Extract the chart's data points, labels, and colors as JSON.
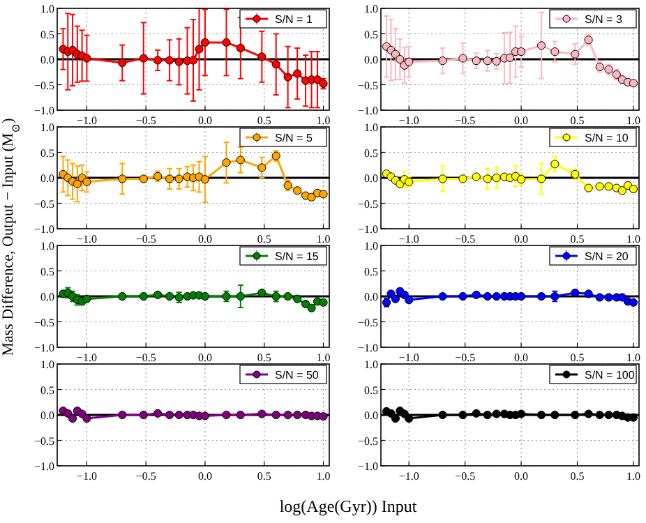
{
  "chart_data": [
    {
      "type": "line",
      "ylabel": "Mass Difference, Output − Input (M$_{⊙}$)",
      "xlabel": "log(Age(Gyr)) Input",
      "x": [
        -1.2,
        -1.16,
        -1.12,
        -1.08,
        -1.04,
        -1.0,
        -0.7,
        -0.52,
        -0.4,
        -0.3,
        -0.22,
        -0.15,
        -0.1,
        -0.05,
        0.0,
        0.18,
        0.3,
        0.48,
        0.6,
        0.7,
        0.78,
        0.85,
        0.9,
        0.95,
        1.0
      ],
      "xlim": [
        -1.25,
        1.05
      ],
      "ylim": [
        -1,
        1
      ],
      "xticks": [
        {
          "value": -1,
          "label": "−1.0"
        },
        {
          "value": -0.5,
          "label": "−0.5"
        },
        {
          "value": 0,
          "label": "0.0"
        },
        {
          "value": 0.5,
          "label": "0.5"
        },
        {
          "value": 1,
          "label": "1.0"
        }
      ],
      "yticks": [
        {
          "value": -1,
          "label": "−1.0"
        },
        {
          "value": -0.5,
          "label": "−0.5"
        },
        {
          "value": 0,
          "label": "0.0"
        },
        {
          "value": 0.5,
          "label": "0.5"
        },
        {
          "value": 1,
          "label": "1.0"
        }
      ],
      "grid": true,
      "legend": "top right",
      "marker": "circle",
      "ref_lines": [
        {
          "axis": "y",
          "value": 0,
          "color": "#000000"
        }
      ],
      "series": [
        {
          "name": "S/N = 1",
          "color": "#ff0000",
          "values": [
            0.2,
            0.15,
            0.18,
            0.1,
            0.07,
            0.02,
            -0.07,
            0.02,
            -0.02,
            -0.02,
            -0.05,
            -0.03,
            -0.02,
            0.2,
            0.33,
            0.33,
            0.22,
            0.05,
            -0.1,
            -0.35,
            -0.28,
            -0.42,
            -0.4,
            -0.4,
            -0.48
          ],
          "errors": [
            0.4,
            0.75,
            0.7,
            0.55,
            0.5,
            0.45,
            0.35,
            0.7,
            0.2,
            0.4,
            0.45,
            0.65,
            0.8,
            0.8,
            0.65,
            0.65,
            0.6,
            0.5,
            0.6,
            0.6,
            0.5,
            0.5,
            0.55,
            0.55,
            0.1
          ]
        }
      ]
    },
    {
      "type": "line",
      "x": [
        -1.2,
        -1.16,
        -1.12,
        -1.08,
        -1.04,
        -1.0,
        -0.7,
        -0.52,
        -0.4,
        -0.3,
        -0.22,
        -0.15,
        -0.1,
        -0.05,
        0.0,
        0.18,
        0.3,
        0.48,
        0.6,
        0.7,
        0.78,
        0.85,
        0.9,
        0.95,
        1.0
      ],
      "xlim": [
        -1.25,
        1.05
      ],
      "ylim": [
        -1,
        1
      ],
      "xticks": [
        {
          "value": -1,
          "label": "−1.0"
        },
        {
          "value": -0.5,
          "label": "−0.5"
        },
        {
          "value": 0,
          "label": "0.0"
        },
        {
          "value": 0.5,
          "label": "0.5"
        },
        {
          "value": 1,
          "label": "1.0"
        }
      ],
      "yticks": [
        {
          "value": -1,
          "label": "−1.0"
        },
        {
          "value": -0.5,
          "label": "−0.5"
        },
        {
          "value": 0,
          "label": "0.0"
        },
        {
          "value": 0.5,
          "label": "0.5"
        },
        {
          "value": 1,
          "label": "1.0"
        }
      ],
      "grid": true,
      "legend": "top right",
      "marker": "circle",
      "ref_lines": [
        {
          "axis": "y",
          "value": 0,
          "color": "#000000"
        }
      ],
      "series": [
        {
          "name": "S/N = 3",
          "color": "#ffb6c1",
          "values": [
            0.25,
            0.18,
            0.1,
            0.0,
            -0.12,
            -0.05,
            -0.03,
            0.02,
            -0.03,
            -0.03,
            -0.04,
            0.02,
            0.03,
            0.15,
            0.15,
            0.27,
            0.15,
            0.1,
            0.38,
            -0.15,
            -0.2,
            -0.3,
            -0.4,
            -0.45,
            -0.47
          ],
          "errors": [
            0.6,
            0.6,
            0.5,
            0.4,
            0.35,
            0.3,
            0.25,
            0.3,
            0.15,
            0.2,
            0.15,
            0.5,
            0.5,
            0.5,
            0.3,
            0.65,
            0.2,
            0.2,
            0.1,
            0.1,
            0.1,
            0.1,
            0.05,
            0.05,
            0.05
          ]
        }
      ]
    },
    {
      "type": "line",
      "x": [
        -1.2,
        -1.16,
        -1.12,
        -1.08,
        -1.04,
        -1.0,
        -0.7,
        -0.52,
        -0.4,
        -0.3,
        -0.22,
        -0.15,
        -0.1,
        -0.05,
        0.0,
        0.18,
        0.3,
        0.48,
        0.6,
        0.7,
        0.78,
        0.85,
        0.9,
        0.95,
        1.0
      ],
      "xlim": [
        -1.25,
        1.05
      ],
      "ylim": [
        -1,
        1
      ],
      "xticks": [
        {
          "value": -1,
          "label": "−1.0"
        },
        {
          "value": -0.5,
          "label": "−0.5"
        },
        {
          "value": 0,
          "label": "0.0"
        },
        {
          "value": 0.5,
          "label": "0.5"
        },
        {
          "value": 1,
          "label": "1.0"
        }
      ],
      "yticks": [
        {
          "value": -1,
          "label": "−1.0"
        },
        {
          "value": -0.5,
          "label": "−0.5"
        },
        {
          "value": 0,
          "label": "0.0"
        },
        {
          "value": 0.5,
          "label": "0.5"
        },
        {
          "value": 1,
          "label": "1.0"
        }
      ],
      "grid": true,
      "legend": "top right",
      "marker": "circle",
      "ref_lines": [
        {
          "axis": "y",
          "value": 0,
          "color": "#000000"
        }
      ],
      "series": [
        {
          "name": "S/N = 5",
          "color": "#ffa500",
          "values": [
            0.07,
            0.0,
            -0.07,
            -0.12,
            0.0,
            -0.08,
            -0.02,
            -0.02,
            0.03,
            -0.02,
            -0.02,
            0.02,
            0.0,
            0.02,
            -0.03,
            0.3,
            0.35,
            0.2,
            0.43,
            -0.15,
            -0.25,
            -0.35,
            -0.38,
            -0.3,
            -0.32
          ],
          "errors": [
            0.35,
            0.35,
            0.35,
            0.35,
            0.25,
            0.2,
            0.3,
            0.05,
            0.1,
            0.2,
            0.2,
            0.2,
            0.25,
            0.3,
            0.45,
            0.4,
            0.25,
            0.2,
            0.1,
            0.1,
            0.05,
            0.05,
            0.05,
            0.05,
            0.05
          ]
        }
      ]
    },
    {
      "type": "line",
      "x": [
        -1.2,
        -1.16,
        -1.12,
        -1.08,
        -1.04,
        -1.0,
        -0.7,
        -0.52,
        -0.4,
        -0.3,
        -0.22,
        -0.15,
        -0.1,
        -0.05,
        0.0,
        0.18,
        0.3,
        0.48,
        0.6,
        0.7,
        0.78,
        0.85,
        0.9,
        0.95,
        1.0
      ],
      "xlim": [
        -1.25,
        1.05
      ],
      "ylim": [
        -1,
        1
      ],
      "xticks": [
        {
          "value": -1,
          "label": "−1.0"
        },
        {
          "value": -0.5,
          "label": "−0.5"
        },
        {
          "value": 0,
          "label": "0.0"
        },
        {
          "value": 0.5,
          "label": "0.5"
        },
        {
          "value": 1,
          "label": "1.0"
        }
      ],
      "yticks": [
        {
          "value": -1,
          "label": "−1.0"
        },
        {
          "value": -0.5,
          "label": "−0.5"
        },
        {
          "value": 0,
          "label": "0.0"
        },
        {
          "value": 0.5,
          "label": "0.5"
        },
        {
          "value": 1,
          "label": "1.0"
        }
      ],
      "grid": true,
      "legend": "top right",
      "marker": "circle",
      "ref_lines": [
        {
          "axis": "y",
          "value": 0,
          "color": "#000000"
        }
      ],
      "series": [
        {
          "name": "S/N = 10",
          "color": "#ffff00",
          "values": [
            0.08,
            0.02,
            -0.05,
            -0.12,
            -0.03,
            -0.08,
            -0.02,
            -0.02,
            0.02,
            -0.02,
            0.0,
            0.02,
            0.0,
            0.03,
            -0.03,
            -0.02,
            0.27,
            0.07,
            -0.2,
            -0.17,
            -0.17,
            -0.2,
            -0.25,
            -0.15,
            -0.22
          ],
          "errors": [
            0.05,
            0.05,
            0.05,
            0.05,
            0.15,
            0.1,
            0.25,
            0.05,
            0.05,
            0.2,
            0.2,
            0.05,
            0.05,
            0.2,
            0.1,
            0.3,
            0.15,
            0.1,
            0.05,
            0.05,
            0.05,
            0.05,
            0.05,
            0.05,
            0.05
          ]
        }
      ]
    },
    {
      "type": "line",
      "x": [
        -1.2,
        -1.16,
        -1.12,
        -1.08,
        -1.04,
        -1.0,
        -0.7,
        -0.52,
        -0.4,
        -0.3,
        -0.22,
        -0.15,
        -0.1,
        -0.05,
        0.0,
        0.18,
        0.3,
        0.48,
        0.6,
        0.7,
        0.78,
        0.85,
        0.9,
        0.95,
        1.0
      ],
      "xlim": [
        -1.25,
        1.05
      ],
      "ylim": [
        -1,
        1
      ],
      "xticks": [
        {
          "value": -1,
          "label": "−1.0"
        },
        {
          "value": -0.5,
          "label": "−0.5"
        },
        {
          "value": 0,
          "label": "0.0"
        },
        {
          "value": 0.5,
          "label": "0.5"
        },
        {
          "value": 1,
          "label": "1.0"
        }
      ],
      "yticks": [
        {
          "value": -1,
          "label": "−1.0"
        },
        {
          "value": -0.5,
          "label": "−0.5"
        },
        {
          "value": 0,
          "label": "0.0"
        },
        {
          "value": 0.5,
          "label": "0.5"
        },
        {
          "value": 1,
          "label": "1.0"
        }
      ],
      "grid": true,
      "legend": "top right",
      "marker": "circle",
      "ref_lines": [
        {
          "axis": "y",
          "value": 0,
          "color": "#000000"
        }
      ],
      "series": [
        {
          "name": "S/N = 15",
          "color": "#008000",
          "values": [
            0.05,
            0.07,
            0.0,
            -0.07,
            -0.1,
            -0.05,
            0.0,
            0.0,
            0.03,
            0.0,
            -0.02,
            0.0,
            0.02,
            0.02,
            0.0,
            0.0,
            0.0,
            0.07,
            0.0,
            0.0,
            -0.05,
            -0.15,
            -0.23,
            -0.1,
            -0.12
          ],
          "errors": [
            0.05,
            0.1,
            0.1,
            0.1,
            0.05,
            0.05,
            0.05,
            0.02,
            0.02,
            0.02,
            0.1,
            0.02,
            0.02,
            0.02,
            0.02,
            0.1,
            0.22,
            0.02,
            0.1,
            0.02,
            0.02,
            0.02,
            0.02,
            0.02,
            0.02
          ]
        }
      ]
    },
    {
      "type": "line",
      "x": [
        -1.2,
        -1.16,
        -1.12,
        -1.08,
        -1.04,
        -1.0,
        -0.7,
        -0.52,
        -0.4,
        -0.3,
        -0.22,
        -0.15,
        -0.1,
        -0.05,
        0.0,
        0.18,
        0.3,
        0.48,
        0.6,
        0.7,
        0.78,
        0.85,
        0.9,
        0.95,
        1.0
      ],
      "xlim": [
        -1.25,
        1.05
      ],
      "ylim": [
        -1,
        1
      ],
      "xticks": [
        {
          "value": -1,
          "label": "−1.0"
        },
        {
          "value": -0.5,
          "label": "−0.5"
        },
        {
          "value": 0,
          "label": "0.0"
        },
        {
          "value": 0.5,
          "label": "0.5"
        },
        {
          "value": 1,
          "label": "1.0"
        }
      ],
      "yticks": [
        {
          "value": -1,
          "label": "−1.0"
        },
        {
          "value": -0.5,
          "label": "−0.5"
        },
        {
          "value": 0,
          "label": "0.0"
        },
        {
          "value": 0.5,
          "label": "0.5"
        },
        {
          "value": 1,
          "label": "1.0"
        }
      ],
      "grid": true,
      "legend": "top right",
      "marker": "circle",
      "ref_lines": [
        {
          "axis": "y",
          "value": 0,
          "color": "#000000"
        }
      ],
      "series": [
        {
          "name": "S/N = 20",
          "color": "#0000ff",
          "values": [
            -0.12,
            0.05,
            -0.05,
            0.1,
            0.03,
            -0.07,
            0.0,
            0.0,
            0.03,
            0.0,
            0.0,
            0.0,
            0.0,
            0.0,
            0.0,
            0.0,
            0.0,
            0.07,
            0.05,
            -0.02,
            -0.02,
            -0.02,
            -0.02,
            -0.1,
            -0.12
          ],
          "errors": [
            0.08,
            0.05,
            0.05,
            0.05,
            0.05,
            0.05,
            0.02,
            0.02,
            0.02,
            0.02,
            0.02,
            0.02,
            0.02,
            0.02,
            0.02,
            0.02,
            0.1,
            0.02,
            0.02,
            0.02,
            0.02,
            0.02,
            0.02,
            0.02,
            0.02
          ]
        }
      ]
    },
    {
      "type": "line",
      "x": [
        -1.2,
        -1.16,
        -1.12,
        -1.08,
        -1.04,
        -1.0,
        -0.7,
        -0.52,
        -0.4,
        -0.3,
        -0.22,
        -0.15,
        -0.1,
        -0.05,
        0.0,
        0.18,
        0.3,
        0.48,
        0.6,
        0.7,
        0.78,
        0.85,
        0.9,
        0.95,
        1.0
      ],
      "xlim": [
        -1.25,
        1.05
      ],
      "ylim": [
        -1,
        1
      ],
      "xticks": [
        {
          "value": -1,
          "label": "−1.0"
        },
        {
          "value": -0.5,
          "label": "−0.5"
        },
        {
          "value": 0,
          "label": "0.0"
        },
        {
          "value": 0.5,
          "label": "0.5"
        },
        {
          "value": 1,
          "label": "1.0"
        }
      ],
      "yticks": [
        {
          "value": -1,
          "label": "−1.0"
        },
        {
          "value": -0.5,
          "label": "−0.5"
        },
        {
          "value": 0,
          "label": "0.0"
        },
        {
          "value": 0.5,
          "label": "0.5"
        },
        {
          "value": 1,
          "label": "1.0"
        }
      ],
      "grid": true,
      "legend": "top right",
      "marker": "circle",
      "ref_lines": [
        {
          "axis": "y",
          "value": 0,
          "color": "#000000"
        }
      ],
      "series": [
        {
          "name": "S/N = 50",
          "color": "#800080",
          "values": [
            0.08,
            0.03,
            -0.07,
            0.08,
            0.02,
            -0.07,
            0.0,
            0.0,
            0.03,
            0.0,
            0.0,
            0.0,
            0.0,
            -0.02,
            -0.02,
            0.0,
            0.0,
            0.02,
            0.0,
            0.0,
            0.0,
            0.0,
            -0.02,
            -0.02,
            -0.03
          ]
        }
      ]
    },
    {
      "type": "line",
      "x": [
        -1.2,
        -1.16,
        -1.12,
        -1.08,
        -1.04,
        -1.0,
        -0.7,
        -0.52,
        -0.4,
        -0.3,
        -0.22,
        -0.15,
        -0.1,
        -0.05,
        0.0,
        0.18,
        0.3,
        0.48,
        0.6,
        0.7,
        0.78,
        0.85,
        0.9,
        0.95,
        1.0
      ],
      "xlim": [
        -1.25,
        1.05
      ],
      "ylim": [
        -1,
        1
      ],
      "xticks": [
        {
          "value": -1,
          "label": "−1.0"
        },
        {
          "value": -0.5,
          "label": "−0.5"
        },
        {
          "value": 0,
          "label": "0.0"
        },
        {
          "value": 0.5,
          "label": "0.5"
        },
        {
          "value": 1,
          "label": "1.0"
        }
      ],
      "yticks": [
        {
          "value": -1,
          "label": "−1.0"
        },
        {
          "value": -0.5,
          "label": "−0.5"
        },
        {
          "value": 0,
          "label": "0.0"
        },
        {
          "value": 0.5,
          "label": "0.5"
        },
        {
          "value": 1,
          "label": "1.0"
        }
      ],
      "grid": true,
      "legend": "top right",
      "marker": "circle",
      "ref_lines": [
        {
          "axis": "y",
          "value": 0,
          "color": "#000000"
        }
      ],
      "series": [
        {
          "name": "S/N = 100",
          "color": "#000000",
          "values": [
            0.07,
            0.03,
            -0.07,
            0.08,
            0.02,
            -0.07,
            0.0,
            0.0,
            0.03,
            0.0,
            0.02,
            0.02,
            0.0,
            0.0,
            0.02,
            0.0,
            0.0,
            0.0,
            0.02,
            0.0,
            0.0,
            0.0,
            -0.02,
            -0.05,
            -0.05
          ]
        }
      ]
    }
  ]
}
